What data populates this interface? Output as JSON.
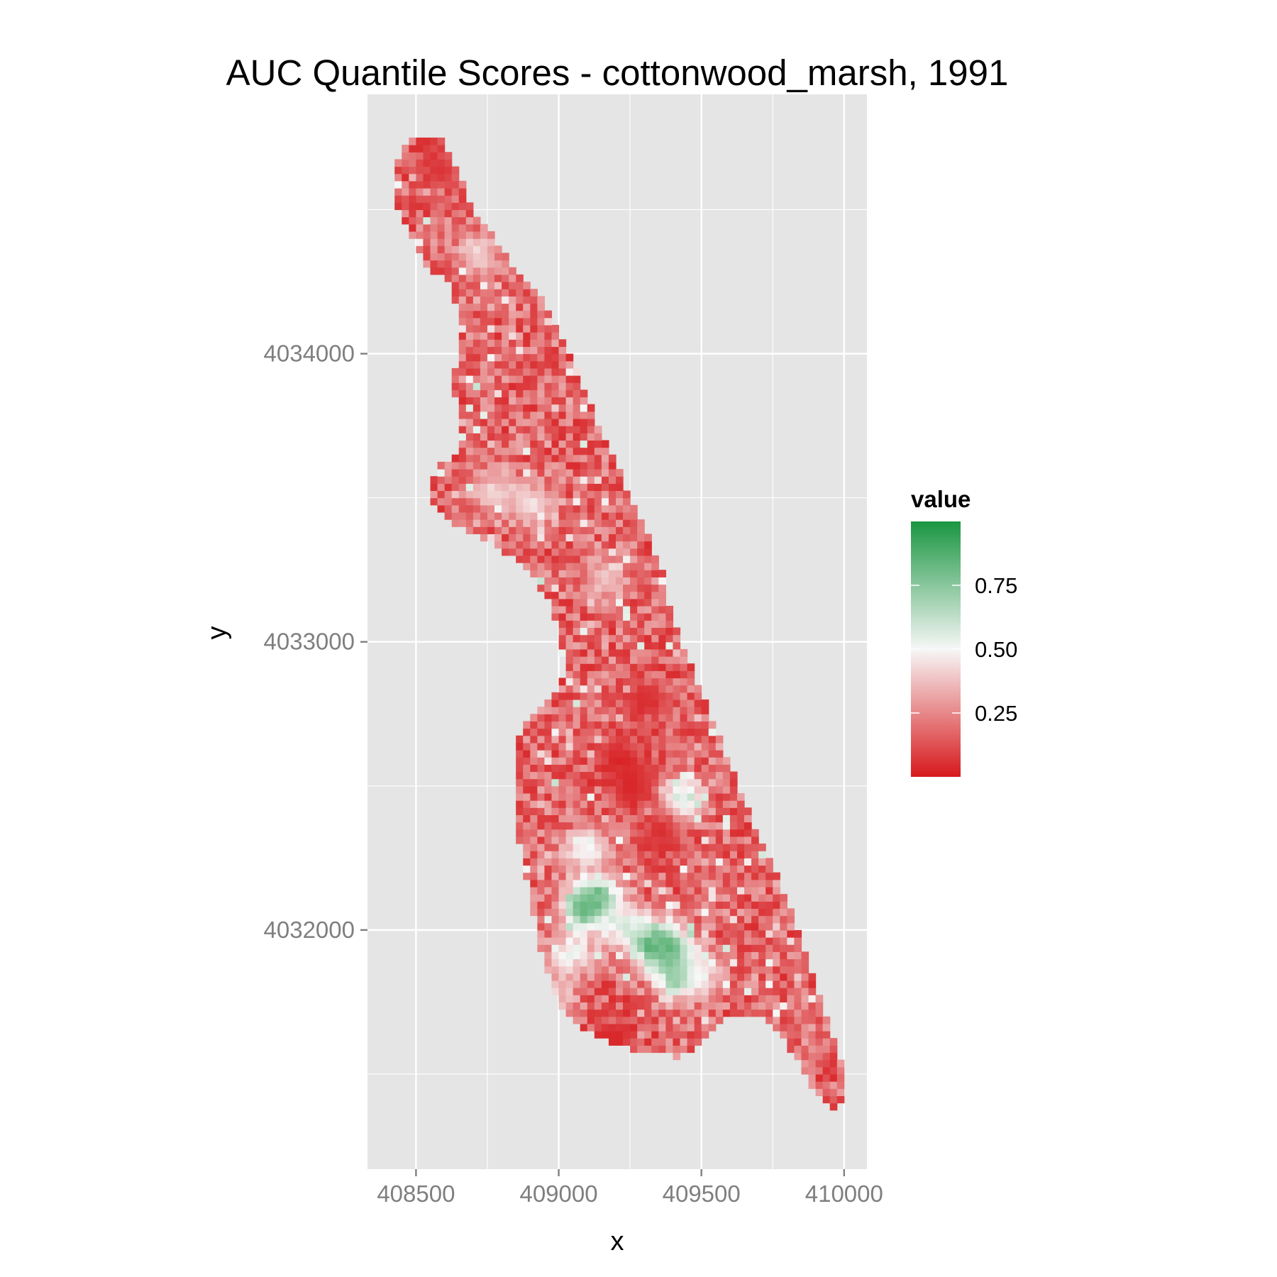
{
  "chart_data": {
    "type": "heatmap",
    "title": "AUC Quantile Scores - cottonwood_marsh, 1991",
    "xlabel": "x",
    "ylabel": "y",
    "x_ticks": [
      408500,
      409000,
      409500,
      410000
    ],
    "x_tick_labels": [
      "408500",
      "409000",
      "409500",
      "410000"
    ],
    "y_ticks": [
      4034000,
      4033000,
      4032000
    ],
    "y_tick_labels": [
      "4034000",
      "4033000",
      "4032000"
    ],
    "xlim": [
      408330,
      410080
    ],
    "ylim": [
      4031170,
      4034900
    ],
    "grid": true,
    "cell_size": 25,
    "legend": {
      "title": "value",
      "position": "right",
      "breaks": [
        0.75,
        0.5,
        0.25
      ],
      "break_labels": [
        "0.75",
        "0.50",
        "0.25"
      ],
      "range": [
        0.0,
        1.0
      ],
      "low_color": "#d7191c",
      "mid_color": "#f7f7f7",
      "high_color": "#1a9641"
    },
    "region_outline": [
      [
        408420,
        4034660
      ],
      [
        408480,
        4034740
      ],
      [
        408580,
        4034760
      ],
      [
        408640,
        4034650
      ],
      [
        408700,
        4034500
      ],
      [
        408790,
        4034380
      ],
      [
        408850,
        4034280
      ],
      [
        408950,
        4034180
      ],
      [
        409030,
        4034020
      ],
      [
        409080,
        4033900
      ],
      [
        409150,
        4033730
      ],
      [
        409230,
        4033550
      ],
      [
        409290,
        4033420
      ],
      [
        409360,
        4033250
      ],
      [
        409400,
        4033080
      ],
      [
        409480,
        4032870
      ],
      [
        409570,
        4032650
      ],
      [
        409660,
        4032420
      ],
      [
        409730,
        4032260
      ],
      [
        409800,
        4032110
      ],
      [
        409870,
        4031900
      ],
      [
        409930,
        4031720
      ],
      [
        409990,
        4031540
      ],
      [
        410000,
        4031430
      ],
      [
        409970,
        4031370
      ],
      [
        409930,
        4031400
      ],
      [
        409860,
        4031500
      ],
      [
        409790,
        4031620
      ],
      [
        409700,
        4031700
      ],
      [
        409580,
        4031700
      ],
      [
        409520,
        4031620
      ],
      [
        409430,
        4031560
      ],
      [
        409320,
        4031570
      ],
      [
        409200,
        4031600
      ],
      [
        409070,
        4031670
      ],
      [
        409000,
        4031750
      ],
      [
        408940,
        4031920
      ],
      [
        408900,
        4032100
      ],
      [
        408860,
        4032320
      ],
      [
        408840,
        4032500
      ],
      [
        408850,
        4032660
      ],
      [
        408900,
        4032750
      ],
      [
        408980,
        4032810
      ],
      [
        409020,
        4032900
      ],
      [
        409000,
        4033040
      ],
      [
        408960,
        4033150
      ],
      [
        408880,
        4033260
      ],
      [
        408790,
        4033330
      ],
      [
        408690,
        4033380
      ],
      [
        408610,
        4033420
      ],
      [
        408540,
        4033490
      ],
      [
        408570,
        4033600
      ],
      [
        408640,
        4033660
      ],
      [
        408660,
        4033790
      ],
      [
        408630,
        4033880
      ],
      [
        408640,
        4033980
      ],
      [
        408640,
        4034080
      ],
      [
        408640,
        4034180
      ],
      [
        408610,
        4034250
      ],
      [
        408530,
        4034300
      ],
      [
        408480,
        4034420
      ],
      [
        408420,
        4034530
      ]
    ],
    "hotspots": [
      {
        "x": 409135,
        "y": 4032110,
        "value": 0.9
      },
      {
        "x": 409085,
        "y": 4032070,
        "value": 0.85
      },
      {
        "x": 409315,
        "y": 4031960,
        "value": 0.9
      },
      {
        "x": 409390,
        "y": 4031930,
        "value": 0.92
      },
      {
        "x": 409420,
        "y": 4031840,
        "value": 0.85
      },
      {
        "x": 409425,
        "y": 4032450,
        "value": 0.72
      },
      {
        "x": 409040,
        "y": 4031920,
        "value": 0.58
      },
      {
        "x": 409230,
        "y": 4032020,
        "value": 0.6
      },
      {
        "x": 409100,
        "y": 4032280,
        "value": 0.55
      },
      {
        "x": 408900,
        "y": 4033480,
        "value": 0.47
      },
      {
        "x": 408780,
        "y": 4033520,
        "value": 0.45
      },
      {
        "x": 408720,
        "y": 4034340,
        "value": 0.42
      },
      {
        "x": 409500,
        "y": 4031860,
        "value": 0.5
      },
      {
        "x": 408980,
        "y": 4031780,
        "value": 0.45
      },
      {
        "x": 409160,
        "y": 4033220,
        "value": 0.4
      }
    ],
    "coldspots": [
      {
        "x": 409220,
        "y": 4032590,
        "value": 0.02
      },
      {
        "x": 409260,
        "y": 4032500,
        "value": 0.03
      },
      {
        "x": 409200,
        "y": 4031630,
        "value": 0.03
      },
      {
        "x": 409360,
        "y": 4032340,
        "value": 0.05
      },
      {
        "x": 409300,
        "y": 4032790,
        "value": 0.05
      },
      {
        "x": 408580,
        "y": 4034640,
        "value": 0.06
      }
    ],
    "baseline_value": 0.18
  }
}
